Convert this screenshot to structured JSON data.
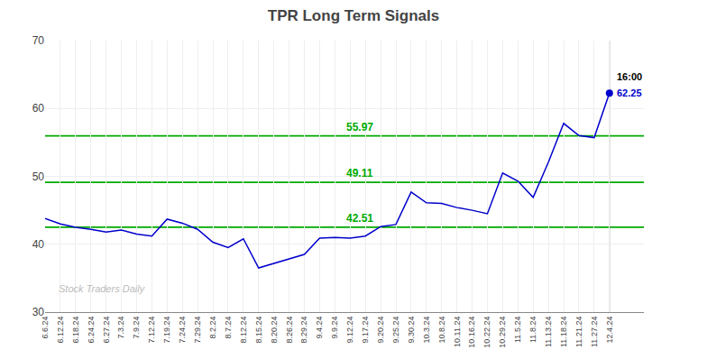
{
  "chart_data": {
    "type": "line",
    "title": "TPR Long Term Signals",
    "watermark": "Stock Traders Daily",
    "categories": [
      "6.6.24",
      "6.12.24",
      "6.18.24",
      "6.24.24",
      "6.27.24",
      "7.3.24",
      "7.9.24",
      "7.12.24",
      "7.19.24",
      "7.24.24",
      "7.29.24",
      "8.2.24",
      "8.7.24",
      "8.12.24",
      "8.15.24",
      "8.20.24",
      "8.26.24",
      "8.29.24",
      "9.4.24",
      "9.9.24",
      "9.12.24",
      "9.17.24",
      "9.20.24",
      "9.25.24",
      "9.30.24",
      "10.3.24",
      "10.8.24",
      "10.11.24",
      "10.16.24",
      "10.22.24",
      "10.29.24",
      "11.5.24",
      "11.8.24",
      "11.13.24",
      "11.18.24",
      "11.21.24",
      "11.27.24",
      "12.4.24"
    ],
    "values": [
      43.8,
      43.0,
      42.5,
      42.2,
      41.8,
      42.1,
      41.5,
      41.2,
      43.7,
      43.1,
      42.2,
      40.3,
      39.5,
      40.8,
      36.5,
      37.2,
      37.8,
      38.5,
      40.9,
      41.0,
      40.9,
      41.2,
      42.6,
      42.9,
      47.7,
      46.1,
      46.0,
      45.4,
      45.0,
      44.5,
      50.5,
      49.3,
      46.9,
      52.1,
      57.8,
      56.0,
      55.7,
      62.25
    ],
    "color": "#0000cc",
    "ylim": [
      30,
      70
    ],
    "yticks": [
      30,
      40,
      50,
      60,
      70
    ],
    "grid": true,
    "hlines": {
      "values": [
        42.51,
        49.11,
        55.97
      ],
      "color": "#00aa00"
    },
    "last_point": {
      "label": "16:00",
      "value": 62.25,
      "marker": "circle"
    }
  }
}
